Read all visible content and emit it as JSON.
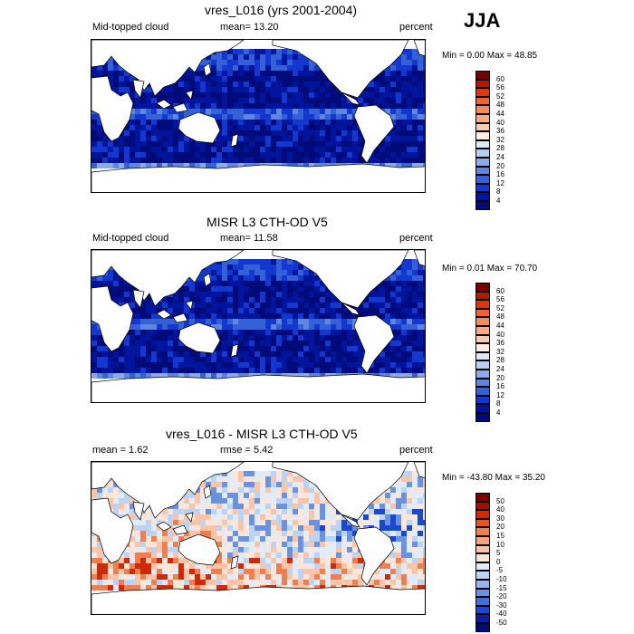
{
  "season": "JJA",
  "panels": [
    {
      "title": "vres_L016 (yrs 2001-2004)",
      "left_label": "Mid-topped cloud",
      "center_label": "mean=  13.20",
      "units": "percent",
      "minmax": "Min =   0.00 Max =  48.85",
      "palette": "clouds",
      "levels": [
        "60",
        "56",
        "52",
        "48",
        "44",
        "40",
        "36",
        "32",
        "28",
        "24",
        "20",
        "16",
        "12",
        "8",
        "4"
      ],
      "colors": [
        "#7a0000",
        "#b01a00",
        "#d83a10",
        "#ee6230",
        "#f58a5a",
        "#f8aa84",
        "#fbcbb0",
        "#fdeee2",
        "#dde8f8",
        "#b7cdf3",
        "#8caae9",
        "#5f86de",
        "#3461d6",
        "#1238d0",
        "#00149c",
        "#000a78"
      ]
    },
    {
      "title": "MISR L3 CTH-OD V5",
      "left_label": "Mid-topped cloud",
      "center_label": "mean=  11.58",
      "units": "percent",
      "minmax": "Min =   0.01 Max =  70.70",
      "palette": "clouds",
      "levels": [
        "60",
        "56",
        "52",
        "48",
        "44",
        "40",
        "36",
        "32",
        "28",
        "24",
        "20",
        "16",
        "12",
        "8",
        "4"
      ],
      "colors": [
        "#7a0000",
        "#b01a00",
        "#d83a10",
        "#ee6230",
        "#f58a5a",
        "#f8aa84",
        "#fbcbb0",
        "#fdeee2",
        "#dde8f8",
        "#b7cdf3",
        "#8caae9",
        "#5f86de",
        "#3461d6",
        "#1238d0",
        "#00149c",
        "#000a78"
      ]
    },
    {
      "title": "vres_L016 - MISR L3 CTH-OD V5",
      "left_label": "mean =   1.62",
      "center_label": "rmse =   5.42",
      "units": "percent",
      "minmax": "Min = -43.80 Max =  35.20",
      "palette": "diff",
      "levels": [
        "50",
        "40",
        "30",
        "20",
        "15",
        "10",
        "5",
        "0",
        "-5",
        "-10",
        "-15",
        "-20",
        "-30",
        "-40",
        "-50"
      ],
      "colors": [
        "#7a0000",
        "#a80c00",
        "#cc2a08",
        "#e45424",
        "#f07e4e",
        "#f6a27c",
        "#fac4a8",
        "#fde6d8",
        "#e0ecfa",
        "#bcd4f4",
        "#94b6ec",
        "#6a92e2",
        "#4070da",
        "#1c48d0",
        "#0a1e9e",
        "#000a78"
      ]
    }
  ]
}
